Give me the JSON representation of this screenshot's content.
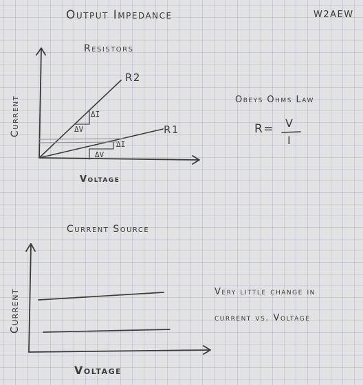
{
  "header": {
    "title": "Output Impedance",
    "callsign": "W2AEW"
  },
  "resistor_diagram": {
    "heading": "Resistors",
    "y_axis_label": "Current",
    "x_axis_label": "Voltage",
    "line_labels": [
      "R2",
      "R1"
    ],
    "delta_i": "ΔI",
    "delta_v": "ΔV",
    "note": "Obeys Ohms Law",
    "formula": {
      "lhs": "R=",
      "numerator": "V",
      "denominator": "I"
    }
  },
  "current_source_diagram": {
    "heading": "Current Source",
    "y_axis_label": "Current",
    "x_axis_label": "Voltage",
    "note_line1": "Very little change in",
    "note_line2": "current vs. Voltage"
  }
}
